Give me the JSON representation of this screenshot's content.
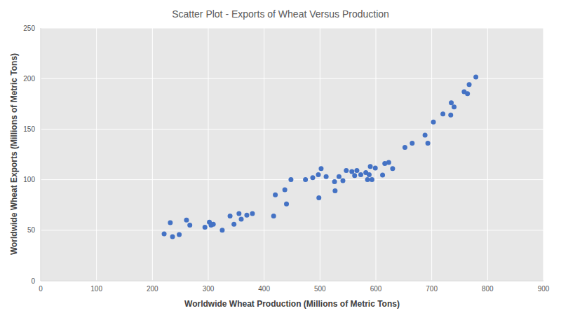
{
  "chart_data": {
    "type": "scatter",
    "title": "Scatter Plot - Exports of Wheat Versus Production",
    "x_label": "Worldwide Wheat Production  (Millions of Metric Tons)",
    "y_label": "Worldwide Wheat Exports (Millions of Metric Tons)",
    "x": [
      221,
      232,
      236,
      248,
      261,
      267,
      294,
      302,
      305,
      309,
      325,
      339,
      346,
      355,
      359,
      369,
      379,
      417,
      420,
      437,
      440,
      448,
      474,
      487,
      497,
      498,
      502,
      511,
      526,
      527,
      534,
      541,
      547,
      557,
      562,
      566,
      573,
      582,
      585,
      588,
      590,
      593,
      599,
      612,
      616,
      623,
      630,
      652,
      665,
      688,
      693,
      703,
      720,
      734,
      735,
      740,
      758,
      764,
      767,
      779
    ],
    "values": [
      46.4,
      57.5,
      43.6,
      45.7,
      60,
      55,
      53,
      58,
      55,
      56,
      50,
      64,
      56,
      66.5,
      61,
      65,
      66.5,
      64,
      85,
      90,
      76,
      100,
      100,
      102,
      105,
      82,
      111,
      103,
      98,
      89,
      103,
      99,
      109,
      108,
      104,
      109,
      105,
      107,
      100,
      105,
      113,
      100,
      111.5,
      104.5,
      116,
      117,
      111,
      132,
      136,
      144,
      136,
      157,
      165,
      164,
      176,
      172,
      187,
      185,
      194,
      201.5
    ],
    "color": "#4472c4",
    "marker": "circle",
    "xlim": [
      0,
      900
    ],
    "ylim": [
      0,
      250
    ],
    "xticks": [
      0,
      100,
      200,
      300,
      400,
      500,
      600,
      700,
      800,
      900
    ],
    "yticks": [
      0,
      50,
      100,
      150,
      200,
      250
    ],
    "grid": true
  }
}
